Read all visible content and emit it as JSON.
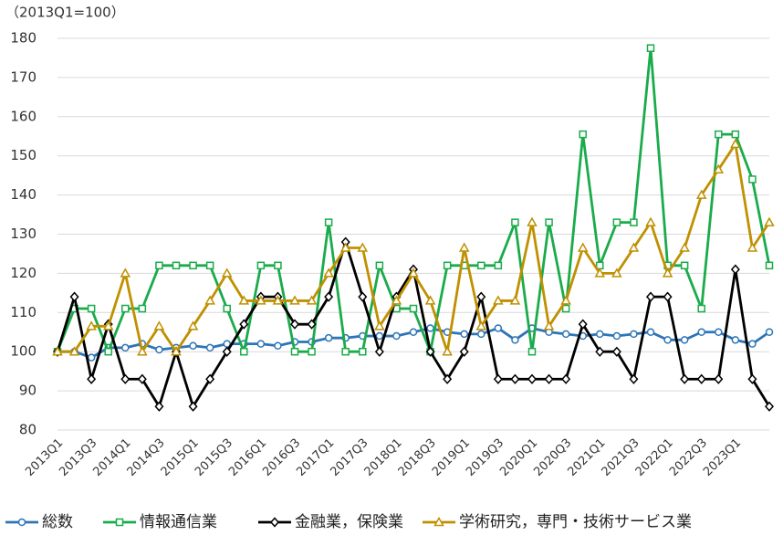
{
  "chart_data": {
    "type": "line",
    "subtitle": "（2013Q1=100）",
    "categories": [
      "2013Q1",
      null,
      "2013Q3",
      null,
      "2014Q1",
      null,
      "2014Q3",
      null,
      "2015Q1",
      null,
      "2015Q3",
      null,
      "2016Q1",
      null,
      "2016Q3",
      null,
      "2017Q1",
      null,
      "2017Q3",
      null,
      "2018Q1",
      null,
      "2018Q3",
      null,
      "2019Q1",
      null,
      "2019Q3",
      null,
      "2020Q1",
      null,
      "2020Q3",
      null,
      "2021Q1",
      null,
      "2021Q3",
      null,
      "2022Q1",
      null,
      "2022Q3",
      null,
      "2023Q1",
      null,
      null
    ],
    "ylim": [
      80,
      180
    ],
    "yticks": [
      80,
      90,
      100,
      110,
      120,
      130,
      140,
      150,
      160,
      170,
      180
    ],
    "grid": true,
    "legend": "bottom",
    "series": [
      {
        "name": "総数",
        "color": "#2e75b6",
        "marker": "circle",
        "values": [
          100,
          100,
          98.5,
          101,
          101,
          102,
          100.5,
          101,
          101.5,
          101,
          102,
          102,
          102,
          101.5,
          102.5,
          102.5,
          103.5,
          103.5,
          104,
          104,
          104,
          105,
          106,
          105,
          104.5,
          104.5,
          106,
          103,
          106,
          105,
          104.5,
          104,
          104.5,
          104,
          104.5,
          105,
          103,
          103,
          105,
          105,
          103,
          102,
          105
        ]
      },
      {
        "name": "情報通信業",
        "color": "#1aab4b",
        "marker": "square",
        "values": [
          100,
          111,
          111,
          100,
          111,
          111,
          122,
          122,
          122,
          122,
          111,
          100,
          122,
          122,
          100,
          100,
          133,
          100,
          100,
          122,
          111,
          111,
          100,
          122,
          122,
          122,
          122,
          133,
          100,
          133,
          111,
          155.5,
          122,
          133,
          133,
          177.5,
          122,
          122,
          111,
          155.5,
          155.5,
          144,
          122
        ]
      },
      {
        "name": "金融業，保険業",
        "color": "#000000",
        "marker": "diamond",
        "values": [
          100,
          114,
          93,
          107,
          93,
          93,
          86,
          100,
          86,
          93,
          100,
          107,
          114,
          114,
          107,
          107,
          114,
          128,
          114,
          100,
          114,
          121,
          100,
          93,
          100,
          114,
          93,
          93,
          93,
          93,
          93,
          107,
          100,
          100,
          93,
          114,
          114,
          93,
          93,
          93,
          121,
          93,
          86
        ]
      },
      {
        "name": "学術研究，専門・技術サービス業",
        "color": "#bf9000",
        "marker": "triangle",
        "values": [
          100,
          100,
          106.5,
          106.5,
          120,
          100,
          106.5,
          100,
          106.5,
          113,
          120,
          113,
          113,
          113,
          113,
          113,
          120,
          126.5,
          126.5,
          106.5,
          113,
          120,
          113,
          100,
          126.5,
          106.5,
          113,
          113,
          133,
          106.5,
          113,
          126.5,
          120,
          120,
          126.5,
          133,
          120,
          126.5,
          140,
          146.5,
          153,
          126.5,
          133
        ]
      }
    ]
  }
}
